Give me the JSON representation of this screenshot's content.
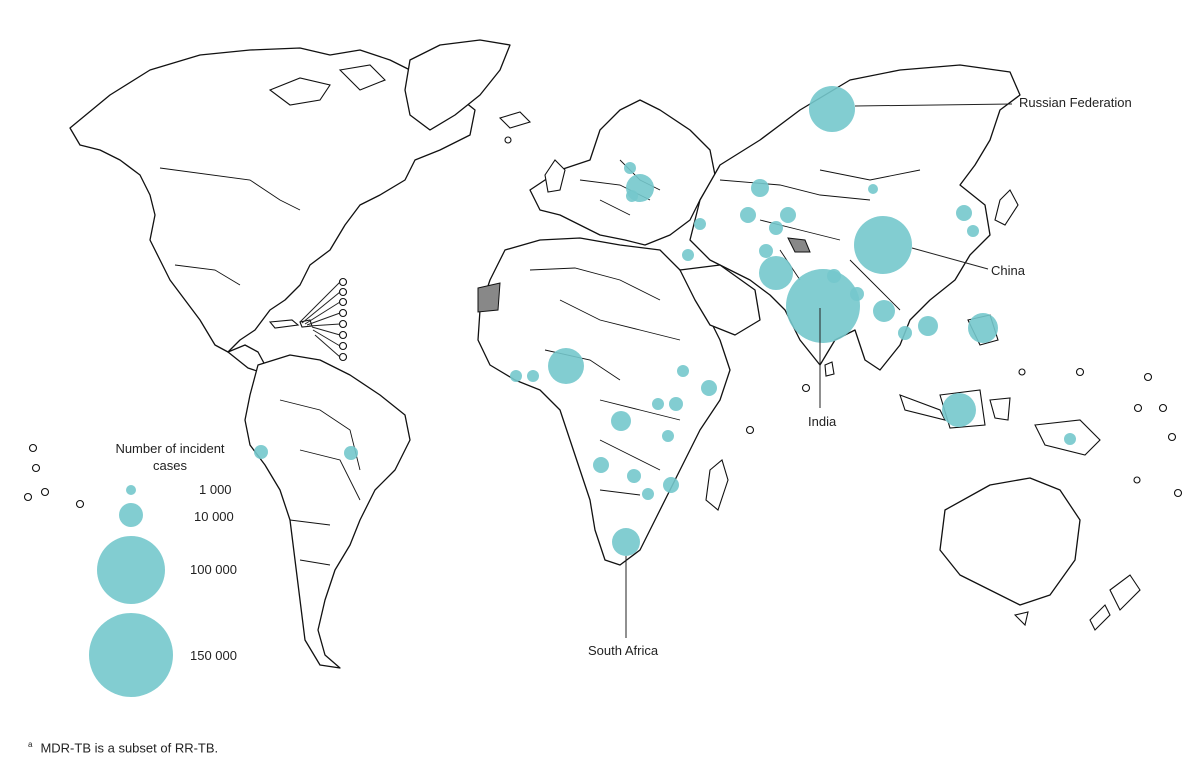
{
  "colors": {
    "bubble": "#74c8cc",
    "land": "#ffffff",
    "outline": "#111111",
    "highlight_grey": "#888888"
  },
  "labels": {
    "russia": "Russian Federation",
    "china": "China",
    "india": "India",
    "south_africa": "South Africa"
  },
  "legend": {
    "title": "Number of incident cases",
    "entries": [
      {
        "value": 1000,
        "label": "1 000"
      },
      {
        "value": 10000,
        "label": "10 000"
      },
      {
        "value": 100000,
        "label": "100 000"
      },
      {
        "value": 150000,
        "label": "150 000"
      }
    ]
  },
  "footnote": {
    "marker": "a",
    "text": "MDR-TB is a subset of RR-TB."
  }
}
